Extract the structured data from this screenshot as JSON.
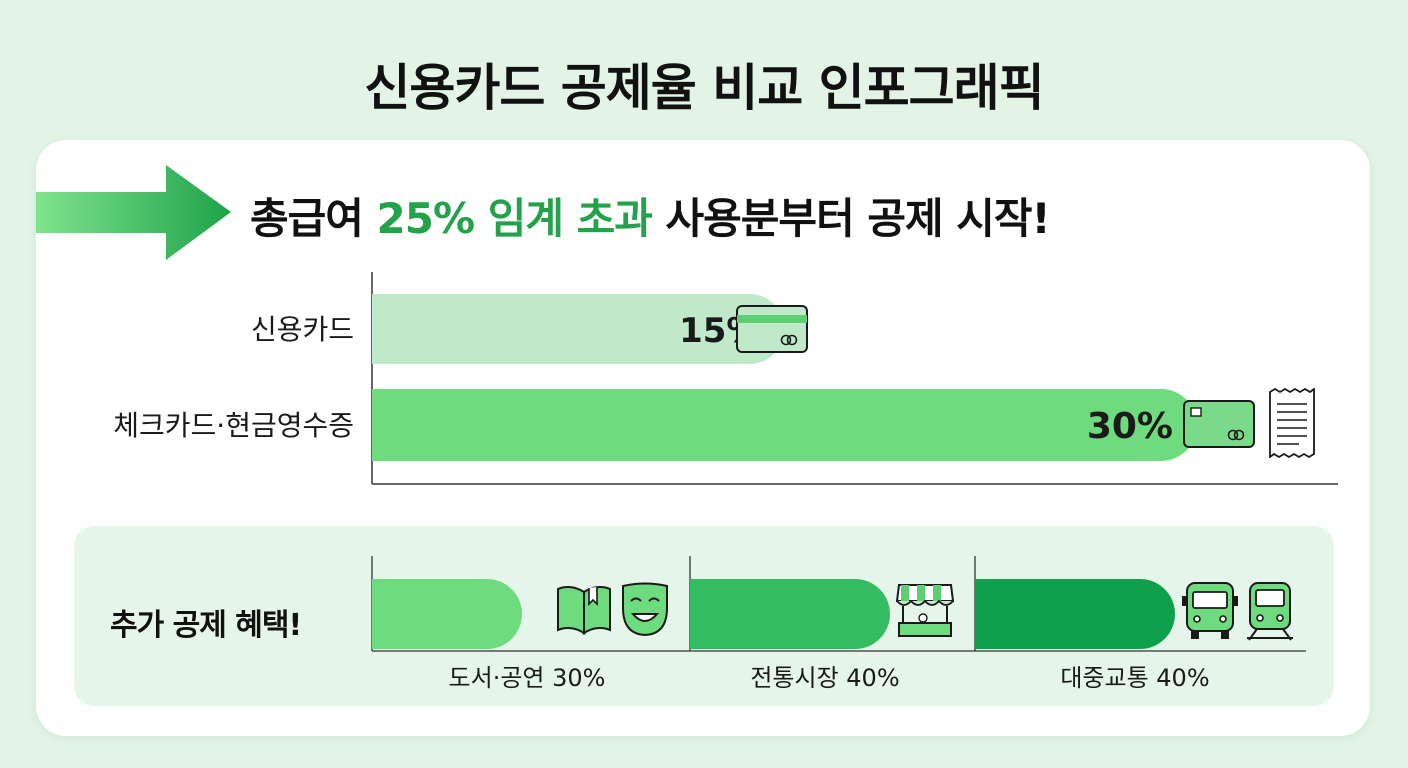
{
  "page_title": "신용카드 공제율 비교 인포그래픽",
  "headline": {
    "prefix": "총급여 ",
    "accent": "25% 임계 초과",
    "suffix": " 사용분부터 공제 시작!"
  },
  "extra_section_title": "추가 공제 혜택!",
  "colors": {
    "background": "#e3f4e7",
    "card": "#ffffff",
    "accent_text": "#23a24b",
    "credit_bar": "#bfe9c9",
    "check_bar": "#6edc7e",
    "culture_bar": "#6edc7e",
    "market_bar": "#33bc62",
    "transit_bar": "#0ea04a",
    "extra_panel": "#e6f5ea"
  },
  "icons": {
    "credit": "credit-card-icon",
    "check": [
      "credit-card-icon",
      "receipt-icon"
    ],
    "culture": [
      "book-icon",
      "theater-mask-icon"
    ],
    "market": [
      "market-stall-icon"
    ],
    "transit": [
      "bus-icon",
      "train-icon"
    ]
  },
  "chart_data": [
    {
      "type": "bar",
      "orientation": "horizontal",
      "categories": [
        "신용카드",
        "체크카드·현금영수증"
      ],
      "values": [
        15,
        30
      ],
      "value_labels": [
        "15%",
        "30%"
      ],
      "unit": "%",
      "xlim": [
        0,
        36
      ],
      "grid": false
    },
    {
      "type": "bar",
      "orientation": "horizontal",
      "categories": [
        "도서·공연 30%",
        "전통시장 40%",
        "대중교통 40%"
      ],
      "values": [
        30,
        40,
        40
      ],
      "unit": "%"
    }
  ]
}
